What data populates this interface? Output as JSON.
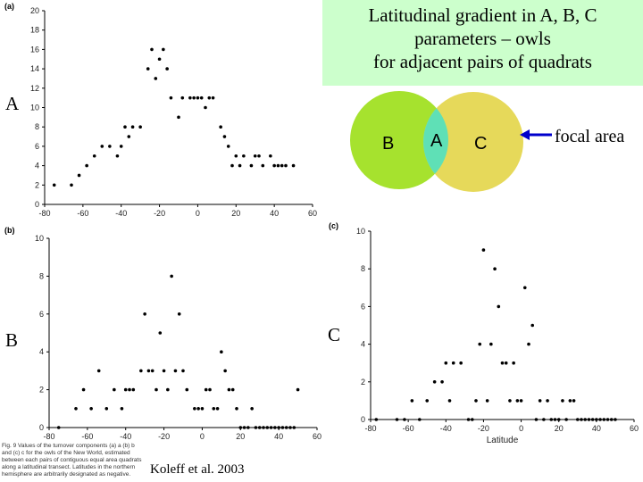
{
  "title": {
    "lines": [
      "Latitudinal gradient in A, B, C",
      "parameters – owls",
      "for adjacent pairs of quadrats"
    ]
  },
  "labels": {
    "A": "A",
    "B": "B",
    "C": "C"
  },
  "venn": {
    "left": "B",
    "middle": "A",
    "right": "C",
    "arrow_label": "focal area",
    "colors": {
      "left": "#a6e22e",
      "right": "#e6d95a",
      "middle": "#5fe0b6",
      "arrow": "#0000cc"
    }
  },
  "caption": "Fig. 9 Values of the turnover components (a) a (b) b and (c) c for the owls of the New World, estimated between each pairs of contiguous equal area quadrats along a latitudinal transect. Latitudes in the northern hemisphere are arbitrarily designated as negative.",
  "citation": "Koleff et al. 2003",
  "chart_data": [
    {
      "type": "scatter",
      "panel_label": "(a)",
      "xlabel": "",
      "ylabel": "",
      "xlim": [
        -80,
        60
      ],
      "ylim": [
        0,
        20
      ],
      "x_ticks": [
        -80,
        -60,
        -40,
        -20,
        0,
        20,
        40,
        60
      ],
      "y_ticks": [
        0,
        2,
        4,
        6,
        8,
        10,
        12,
        14,
        16,
        18,
        20
      ],
      "x": [
        -75,
        -66,
        -62,
        -58,
        -54,
        -50,
        -46,
        -42,
        -40,
        -38,
        -36,
        -34,
        -30,
        -26,
        -24,
        -22,
        -20,
        -18,
        -16,
        -14,
        -10,
        -8,
        -4,
        -2,
        0,
        2,
        4,
        6,
        8,
        12,
        14,
        16,
        18,
        20,
        22,
        24,
        28,
        30,
        32,
        34,
        38,
        40,
        42,
        44,
        46,
        50
      ],
      "y": [
        2,
        2,
        3,
        4,
        5,
        6,
        6,
        5,
        6,
        8,
        7,
        8,
        8,
        14,
        16,
        13,
        15,
        16,
        14,
        11,
        9,
        11,
        11,
        11,
        11,
        11,
        10,
        11,
        11,
        8,
        7,
        6,
        4,
        5,
        4,
        5,
        4,
        5,
        5,
        4,
        5,
        4,
        4,
        4,
        4,
        4
      ]
    },
    {
      "type": "scatter",
      "panel_label": "(b)",
      "xlabel": "",
      "ylabel": "",
      "xlim": [
        -80,
        60
      ],
      "ylim": [
        0,
        10
      ],
      "x_ticks": [
        -80,
        -60,
        -40,
        -20,
        0,
        20,
        40,
        60
      ],
      "y_ticks": [
        0,
        2,
        4,
        6,
        8,
        10
      ],
      "x": [
        -75,
        -66,
        -62,
        -58,
        -54,
        -50,
        -46,
        -42,
        -40,
        -38,
        -36,
        -32,
        -30,
        -28,
        -26,
        -24,
        -22,
        -20,
        -18,
        -16,
        -14,
        -12,
        -10,
        -8,
        -4,
        -2,
        0,
        2,
        4,
        6,
        8,
        10,
        12,
        14,
        16,
        18,
        20,
        22,
        24,
        26,
        28,
        30,
        32,
        34,
        36,
        38,
        40,
        42,
        44,
        46,
        48,
        50
      ],
      "y": [
        0,
        1,
        2,
        1,
        3,
        1,
        2,
        1,
        2,
        2,
        2,
        3,
        6,
        3,
        3,
        2,
        5,
        3,
        2,
        8,
        3,
        6,
        3,
        2,
        1,
        1,
        1,
        2,
        2,
        1,
        1,
        4,
        3,
        2,
        2,
        1,
        0,
        0,
        0,
        1,
        0,
        0,
        0,
        0,
        0,
        0,
        0,
        0,
        0,
        0,
        0,
        2
      ]
    },
    {
      "type": "scatter",
      "panel_label": "(c)",
      "xlabel": "Latitude",
      "ylabel": "",
      "xlim": [
        -80,
        60
      ],
      "ylim": [
        0,
        10
      ],
      "x_ticks": [
        -80,
        -60,
        -40,
        -20,
        0,
        20,
        40,
        60
      ],
      "y_ticks": [
        0,
        2,
        4,
        6,
        8,
        10
      ],
      "x": [
        -77,
        -66,
        -62,
        -58,
        -54,
        -50,
        -46,
        -42,
        -40,
        -38,
        -36,
        -32,
        -28,
        -26,
        -24,
        -22,
        -20,
        -18,
        -16,
        -14,
        -12,
        -10,
        -8,
        -6,
        -4,
        -2,
        0,
        2,
        4,
        6,
        8,
        10,
        12,
        14,
        16,
        18,
        20,
        22,
        24,
        26,
        28,
        30,
        32,
        34,
        36,
        38,
        40,
        42,
        44,
        46,
        48,
        50
      ],
      "y": [
        0,
        0,
        0,
        1,
        0,
        1,
        2,
        2,
        3,
        1,
        3,
        3,
        0,
        0,
        1,
        4,
        9,
        1,
        4,
        8,
        6,
        3,
        3,
        1,
        3,
        1,
        1,
        7,
        4,
        5,
        0,
        1,
        0,
        1,
        0,
        0,
        0,
        1,
        0,
        1,
        1,
        0,
        0,
        0,
        0,
        0,
        0,
        0,
        0,
        0,
        0,
        0
      ]
    }
  ]
}
